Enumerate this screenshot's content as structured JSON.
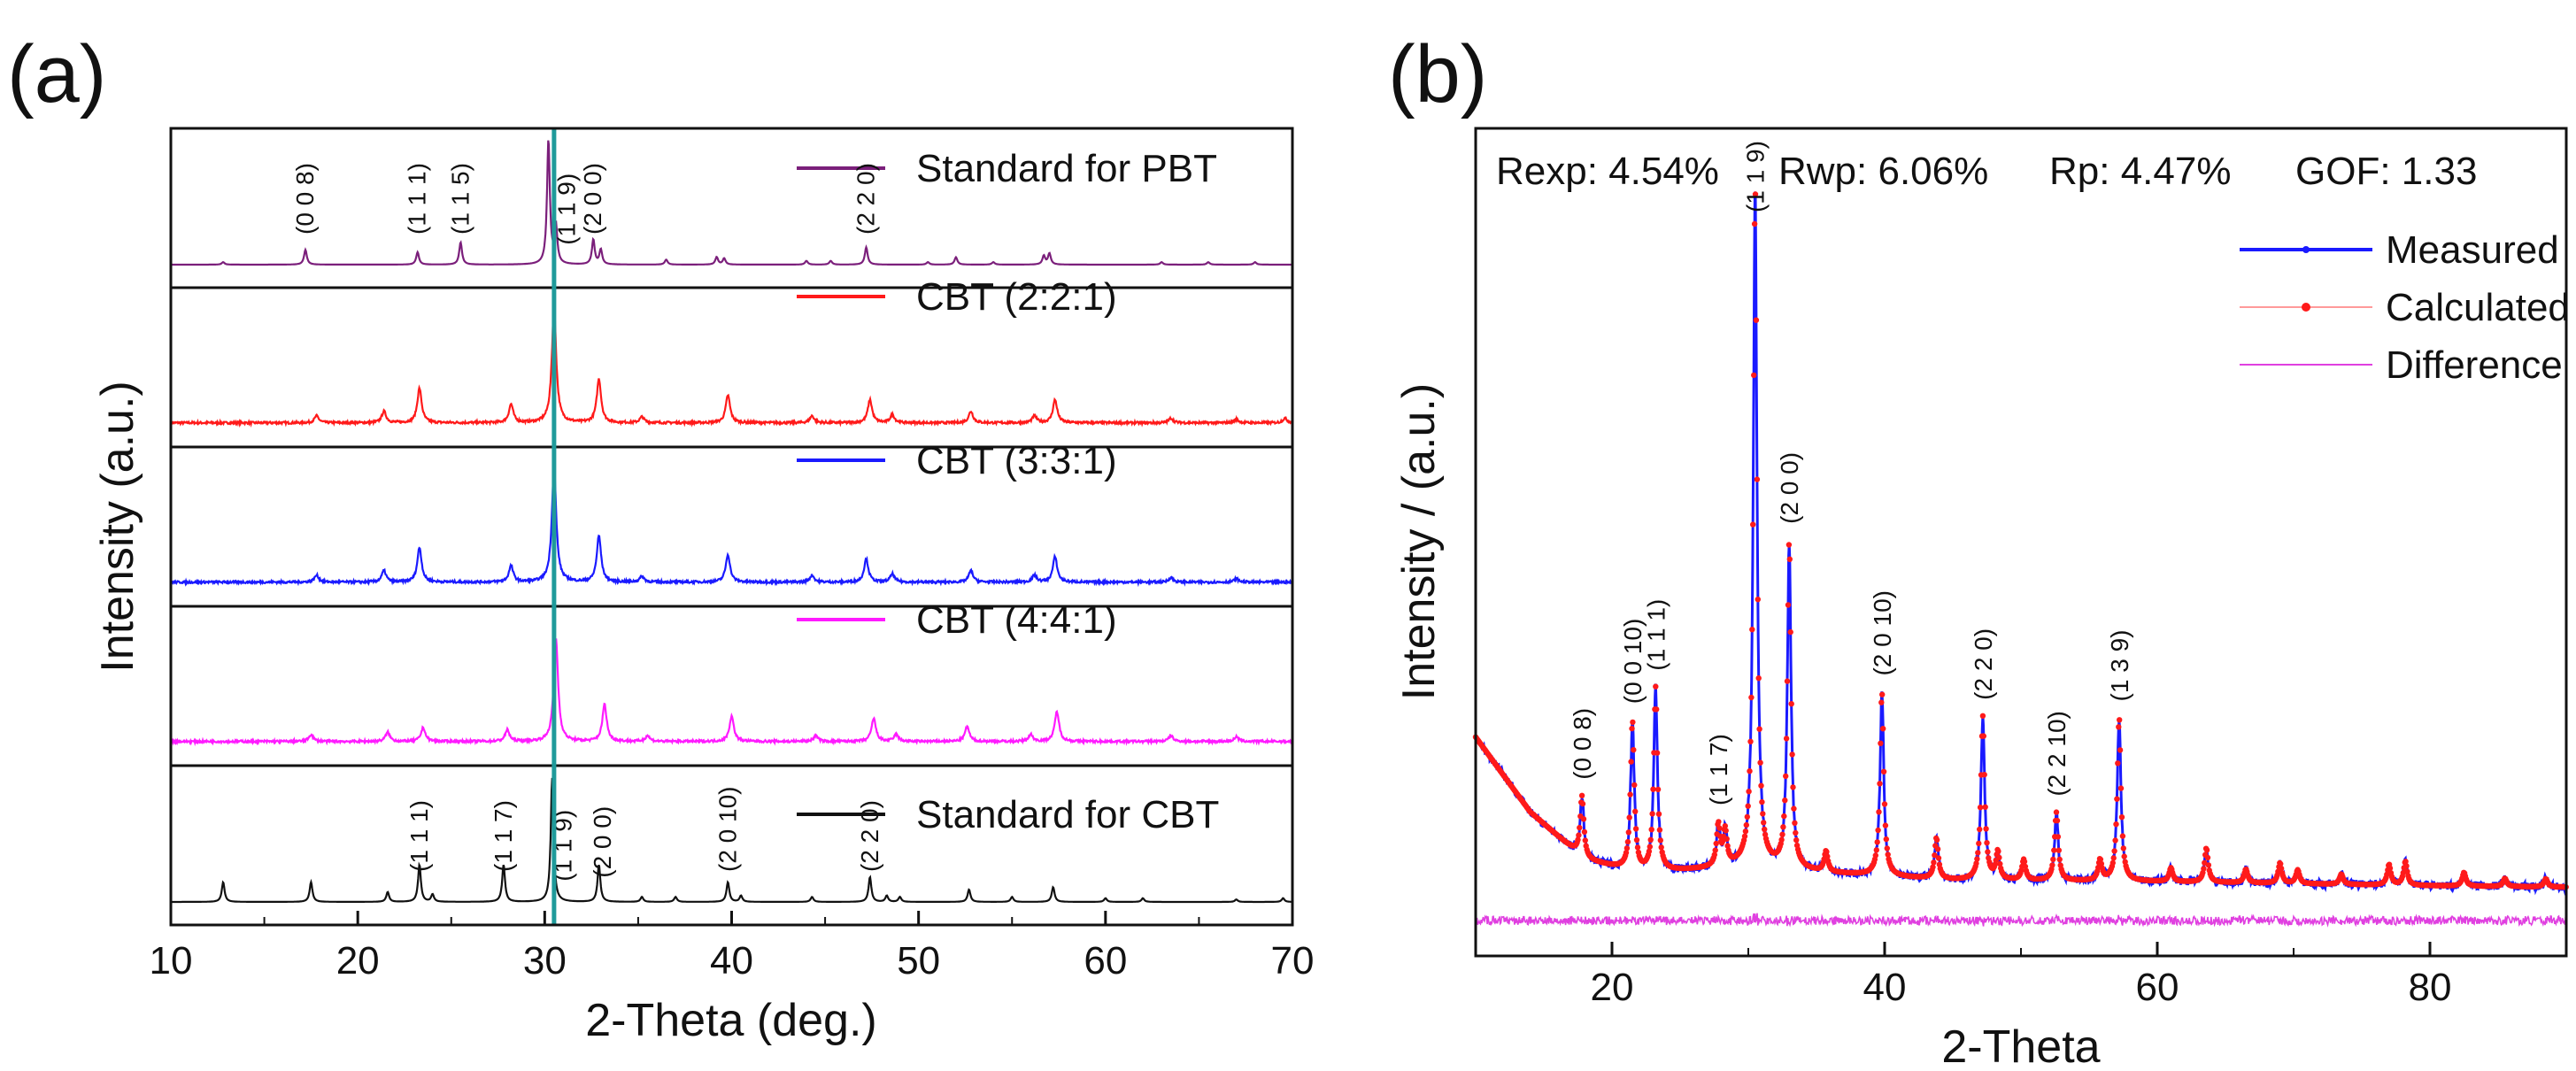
{
  "chart_data": [
    {
      "type": "line",
      "panel_label": "(a)",
      "xlabel": "2-Theta (deg.)",
      "ylabel": "Intensity (a.u.)",
      "xlim": [
        10,
        70
      ],
      "xticks": [
        10,
        20,
        30,
        40,
        50,
        60,
        70
      ],
      "reference_line_x": 30.5,
      "reference_line_color": "#1f9a9a",
      "series": [
        {
          "name": "Standard for PBT",
          "color": "#7b1f7b",
          "kind": "stick",
          "peaks": [
            [
              12.8,
              0.02
            ],
            [
              17.2,
              0.12
            ],
            [
              23.2,
              0.1
            ],
            [
              25.5,
              0.18
            ],
            [
              30.2,
              1.0
            ],
            [
              30.6,
              0.3
            ],
            [
              32.6,
              0.2
            ],
            [
              33.0,
              0.12
            ],
            [
              36.5,
              0.04
            ],
            [
              39.2,
              0.06
            ],
            [
              39.6,
              0.05
            ],
            [
              44.0,
              0.03
            ],
            [
              45.3,
              0.03
            ],
            [
              47.2,
              0.14
            ],
            [
              50.5,
              0.02
            ],
            [
              52.0,
              0.06
            ],
            [
              54.0,
              0.02
            ],
            [
              56.7,
              0.07
            ],
            [
              57.0,
              0.09
            ],
            [
              63.0,
              0.02
            ],
            [
              65.5,
              0.02
            ],
            [
              68.0,
              0.02
            ]
          ],
          "labels": [
            {
              "x": 17.2,
              "hkl": "(0 0 8)"
            },
            {
              "x": 23.2,
              "hkl": "(1 1 1)"
            },
            {
              "x": 25.5,
              "hkl": "(1 1 5)"
            },
            {
              "x": 31.2,
              "hkl": "(1 1 9)"
            },
            {
              "x": 32.6,
              "hkl": "(2 0 0)"
            },
            {
              "x": 47.2,
              "hkl": "(2 2 0)"
            }
          ]
        },
        {
          "name": "CBT (2:2:1)",
          "color": "#ff1a1a",
          "kind": "pattern",
          "peaks": [
            [
              17.8,
              0.06
            ],
            [
              21.4,
              0.1
            ],
            [
              23.3,
              0.3
            ],
            [
              28.2,
              0.16
            ],
            [
              30.5,
              1.0
            ],
            [
              32.9,
              0.38
            ],
            [
              35.2,
              0.05
            ],
            [
              39.8,
              0.24
            ],
            [
              44.3,
              0.06
            ],
            [
              47.4,
              0.2
            ],
            [
              48.6,
              0.07
            ],
            [
              52.8,
              0.1
            ],
            [
              56.2,
              0.06
            ],
            [
              57.3,
              0.2
            ],
            [
              63.5,
              0.04
            ],
            [
              67.0,
              0.03
            ],
            [
              69.6,
              0.04
            ]
          ]
        },
        {
          "name": "CBT (3:3:1)",
          "color": "#1a1aff",
          "kind": "pattern",
          "peaks": [
            [
              17.8,
              0.06
            ],
            [
              21.4,
              0.1
            ],
            [
              23.3,
              0.3
            ],
            [
              28.2,
              0.14
            ],
            [
              30.5,
              1.0
            ],
            [
              32.9,
              0.4
            ],
            [
              35.2,
              0.05
            ],
            [
              39.8,
              0.24
            ],
            [
              44.3,
              0.06
            ],
            [
              47.2,
              0.2
            ],
            [
              48.6,
              0.07
            ],
            [
              52.8,
              0.1
            ],
            [
              56.2,
              0.06
            ],
            [
              57.3,
              0.22
            ],
            [
              63.5,
              0.04
            ],
            [
              67.0,
              0.03
            ]
          ]
        },
        {
          "name": "CBT (4:4:1)",
          "color": "#ff1aff",
          "kind": "pattern",
          "peaks": [
            [
              17.5,
              0.06
            ],
            [
              21.6,
              0.08
            ],
            [
              23.5,
              0.12
            ],
            [
              28.0,
              0.1
            ],
            [
              30.6,
              0.9
            ],
            [
              33.2,
              0.32
            ],
            [
              35.5,
              0.05
            ],
            [
              40.0,
              0.22
            ],
            [
              44.5,
              0.05
            ],
            [
              47.6,
              0.2
            ],
            [
              48.8,
              0.06
            ],
            [
              52.6,
              0.13
            ],
            [
              56.0,
              0.06
            ],
            [
              57.4,
              0.26
            ],
            [
              63.5,
              0.05
            ],
            [
              67.0,
              0.04
            ]
          ]
        },
        {
          "name": "Standard for CBT",
          "color": "#111111",
          "kind": "stick",
          "peaks": [
            [
              12.8,
              0.16
            ],
            [
              17.5,
              0.16
            ],
            [
              21.6,
              0.08
            ],
            [
              23.3,
              0.3
            ],
            [
              24.0,
              0.06
            ],
            [
              27.8,
              0.3
            ],
            [
              30.4,
              1.0
            ],
            [
              32.9,
              0.3
            ],
            [
              35.2,
              0.04
            ],
            [
              37.0,
              0.04
            ],
            [
              39.8,
              0.16
            ],
            [
              40.5,
              0.05
            ],
            [
              44.3,
              0.04
            ],
            [
              47.4,
              0.2
            ],
            [
              48.3,
              0.05
            ],
            [
              49.0,
              0.04
            ],
            [
              52.7,
              0.1
            ],
            [
              55.0,
              0.04
            ],
            [
              57.2,
              0.12
            ],
            [
              60.0,
              0.03
            ],
            [
              62.0,
              0.03
            ],
            [
              67.0,
              0.02
            ],
            [
              69.5,
              0.03
            ]
          ],
          "labels": [
            {
              "x": 23.3,
              "hkl": "(1 1 1)"
            },
            {
              "x": 27.8,
              "hkl": "(1 1 7)"
            },
            {
              "x": 31.0,
              "hkl": "(1 1 9)"
            },
            {
              "x": 33.1,
              "hkl": "(2 0 0)"
            },
            {
              "x": 39.8,
              "hkl": "(2 0 10)"
            },
            {
              "x": 47.4,
              "hkl": "(2 2 0)"
            }
          ]
        }
      ]
    },
    {
      "type": "line",
      "panel_label": "(b)",
      "xlabel": "2-Theta",
      "ylabel": "Intensity / (a.u.)",
      "xlim": [
        10,
        90
      ],
      "xticks": [
        20,
        40,
        60,
        80
      ],
      "stats": {
        "rexp": "Rexp: 4.54%",
        "rwp": "Rwp: 6.06%",
        "rp": "Rp: 4.47%",
        "gof": "GOF: 1.33"
      },
      "background": [
        [
          10,
          0.23
        ],
        [
          14,
          0.12
        ],
        [
          18,
          0.05
        ],
        [
          22,
          0.03
        ],
        [
          26,
          0.035
        ],
        [
          30,
          0.04
        ],
        [
          36,
          0.03
        ],
        [
          45,
          0.02
        ],
        [
          60,
          0.018
        ],
        [
          80,
          0.012
        ],
        [
          90,
          0.01
        ]
      ],
      "peaks": [
        [
          17.8,
          0.09
        ],
        [
          21.5,
          0.22
        ],
        [
          23.2,
          0.27
        ],
        [
          27.8,
          0.06
        ],
        [
          28.3,
          0.05
        ],
        [
          30.5,
          1.0
        ],
        [
          33.0,
          0.48
        ],
        [
          35.7,
          0.03
        ],
        [
          39.8,
          0.27
        ],
        [
          43.8,
          0.06
        ],
        [
          47.2,
          0.24
        ],
        [
          48.3,
          0.04
        ],
        [
          50.2,
          0.03
        ],
        [
          52.6,
          0.1
        ],
        [
          55.8,
          0.03
        ],
        [
          57.2,
          0.24
        ],
        [
          61.0,
          0.02
        ],
        [
          63.6,
          0.05
        ],
        [
          66.5,
          0.02
        ],
        [
          69.0,
          0.03
        ],
        [
          70.3,
          0.02
        ],
        [
          73.5,
          0.015
        ],
        [
          77.0,
          0.03
        ],
        [
          78.2,
          0.035
        ],
        [
          82.5,
          0.02
        ],
        [
          85.5,
          0.012
        ],
        [
          88.5,
          0.012
        ]
      ],
      "peak_labels": [
        {
          "x": 17.8,
          "hkl": "(0 0 8)"
        },
        {
          "x": 21.5,
          "hkl": "(0 0 10)"
        },
        {
          "x": 23.2,
          "hkl": "(1 1 1)"
        },
        {
          "x": 27.8,
          "hkl": "(1 1 7)"
        },
        {
          "x": 30.5,
          "hkl": "(1 1 9)"
        },
        {
          "x": 33.0,
          "hkl": "(2 0 0)"
        },
        {
          "x": 39.8,
          "hkl": "(2 0 10)"
        },
        {
          "x": 47.2,
          "hkl": "(2 2 0)"
        },
        {
          "x": 52.6,
          "hkl": "(2 2 10)"
        },
        {
          "x": 57.2,
          "hkl": "(1 3 9)"
        }
      ],
      "series": [
        {
          "name": "Measured",
          "color": "#1a1aff"
        },
        {
          "name": "Calculated",
          "color": "#ff1a1a"
        },
        {
          "name": "Difference",
          "color": "#e040e0"
        }
      ]
    }
  ]
}
